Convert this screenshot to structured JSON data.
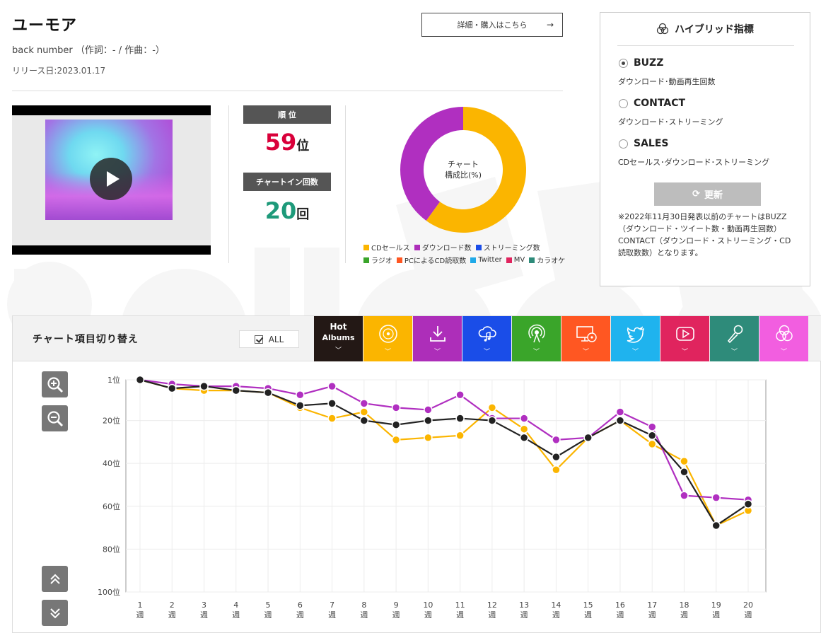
{
  "song": {
    "title": "ユーモア",
    "artist_line": "back number （作詞：- / 作曲：-）",
    "release": "リリース日:2023.01.17",
    "buy_label": "詳細・購入はこちら",
    "buy_arrow": "→"
  },
  "stats": {
    "rank_label": "順 位",
    "rank_value": "59",
    "rank_unit": "位",
    "chartin_label": "チャートイン回数",
    "chartin_value": "20",
    "chartin_unit": "回"
  },
  "composition": {
    "center_line1": "チャート",
    "center_line2": "構成比(%)",
    "legend": [
      {
        "label": "CDセールス",
        "color": "#fbb500"
      },
      {
        "label": "ダウンロード数",
        "color": "#ad2eb9"
      },
      {
        "label": "ストリーミング数",
        "color": "#1a4de8"
      },
      {
        "label": "ラジオ",
        "color": "#3aa52a"
      },
      {
        "label": "PCによるCD読取数",
        "color": "#ff5722"
      },
      {
        "label": "Twitter",
        "color": "#1fa9e8"
      },
      {
        "label": "MV",
        "color": "#e0245e"
      },
      {
        "label": "カラオケ",
        "color": "#2e8b7a"
      }
    ],
    "slices": [
      {
        "label": "CDセールス",
        "value": 60,
        "color": "#fbb500"
      },
      {
        "label": "ダウンロード数",
        "value": 40,
        "color": "#b02fc0"
      }
    ]
  },
  "hybrid": {
    "title": "ハイブリッド指標",
    "options": [
      {
        "name": "BUZZ",
        "desc": "ダウンロード･動画再生回数",
        "selected": true
      },
      {
        "name": "CONTACT",
        "desc": "ダウンロード･ストリーミング",
        "selected": false
      },
      {
        "name": "SALES",
        "desc": "CDセールス･ダウンロード･ストリーミング",
        "selected": false
      }
    ],
    "update_label": "更新",
    "note": "※2022年11月30日発表以前のチャートはBUZZ（ダウンロード・ツイート数・動画再生回数）CONTACT（ダウンロード・ストリーミング・CD読取数数）となります。"
  },
  "switcher": {
    "title": "チャート項目切り替え",
    "all_label": "ALL",
    "hot_line1": "Hot",
    "hot_line2": "Albums",
    "categories": [
      {
        "icon": "hot-albums",
        "color": "#231815"
      },
      {
        "icon": "cd-icon",
        "color": "#fbb500"
      },
      {
        "icon": "download-icon",
        "color": "#ad2eb9"
      },
      {
        "icon": "streaming-icon",
        "color": "#1a4de8"
      },
      {
        "icon": "radio-icon",
        "color": "#3aa52a"
      },
      {
        "icon": "pc-cd-icon",
        "color": "#ff5722"
      },
      {
        "icon": "twitter-icon",
        "color": "#1fb3ee"
      },
      {
        "icon": "mv-icon",
        "color": "#e0245e"
      },
      {
        "icon": "karaoke-icon",
        "color": "#2e8b7a"
      },
      {
        "icon": "hybrid-icon",
        "color": "#f25ee0"
      }
    ]
  },
  "chart_data": {
    "type": "line",
    "x": [
      "1\n週",
      "2\n週",
      "3\n週",
      "4\n週",
      "5\n週",
      "6\n週",
      "7\n週",
      "8\n週",
      "9\n週",
      "10\n週",
      "11\n週",
      "12\n週",
      "13\n週",
      "14\n週",
      "15\n週",
      "16\n週",
      "17\n週",
      "18\n週",
      "19\n週",
      "20\n週"
    ],
    "y_ticks": [
      "1位",
      "20位",
      "40位",
      "60位",
      "80位",
      "100位"
    ],
    "y_tick_values": [
      1,
      20,
      40,
      60,
      80,
      100
    ],
    "ylim": [
      1,
      100
    ],
    "y_inverted": true,
    "grid": true,
    "series": [
      {
        "color": "#fbb500",
        "values": [
          1,
          5,
          6,
          6,
          7,
          14,
          19,
          16,
          29,
          28,
          27,
          14,
          24,
          43,
          28,
          20,
          31,
          39,
          69,
          62
        ]
      },
      {
        "color": "#b02fc0",
        "values": [
          1,
          3,
          4,
          4,
          5,
          8,
          4,
          12,
          14,
          15,
          8,
          19,
          19,
          29,
          28,
          16,
          23,
          55,
          56,
          57
        ]
      },
      {
        "color": "#222222",
        "values": [
          1,
          5,
          4,
          6,
          7,
          13,
          12,
          20,
          22,
          20,
          19,
          20,
          28,
          37,
          28,
          20,
          27,
          44,
          69,
          59
        ]
      }
    ]
  }
}
